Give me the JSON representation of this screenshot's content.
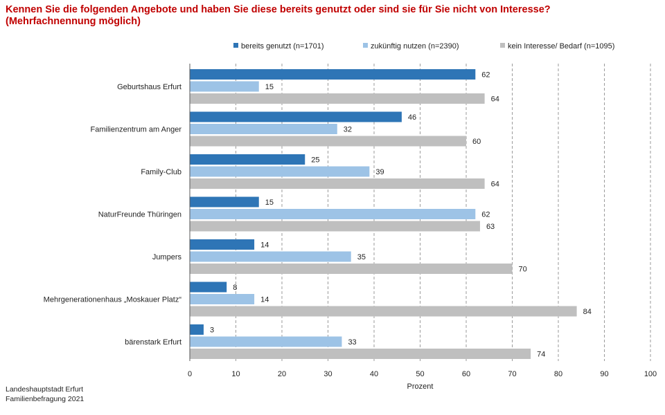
{
  "chart_data": {
    "type": "bar",
    "orientation": "horizontal",
    "title": "Kennen Sie die folgenden Angebote und haben Sie diese bereits genutzt oder sind sie für Sie nicht von Interesse?",
    "subtitle": "(Mehrfachnennung möglich)",
    "xlabel": "Prozent",
    "ylabel": "",
    "xlim": [
      0,
      100
    ],
    "x_ticks": [
      "0",
      "10",
      "20",
      "30",
      "40",
      "50",
      "60",
      "70",
      "80",
      "90",
      "100"
    ],
    "grid": "vertical dashed",
    "legend_position": "top",
    "categories": [
      "Geburtshaus Erfurt",
      "Familienzentrum am Anger",
      "Family-Club",
      "NaturFreunde Thüringen",
      "Jumpers",
      "Mehrgenerationenhaus „Moskauer Platz“",
      "bärenstark Erfurt"
    ],
    "series": [
      {
        "name": "bereits genutzt (n=1701)",
        "color": "#2e75b6",
        "values": [
          62,
          46,
          25,
          15,
          14,
          8,
          3
        ]
      },
      {
        "name": "zukünftig nutzen (n=2390)",
        "color": "#9dc3e6",
        "values": [
          15,
          32,
          39,
          62,
          35,
          14,
          33
        ]
      },
      {
        "name": "kein Interesse/ Bedarf (n=1095)",
        "color": "#bfbfbf",
        "values": [
          64,
          60,
          64,
          63,
          70,
          84,
          74
        ]
      }
    ]
  },
  "source": {
    "line1": "Landeshauptstadt Erfurt",
    "line2": "Familienbefragung 2021"
  }
}
